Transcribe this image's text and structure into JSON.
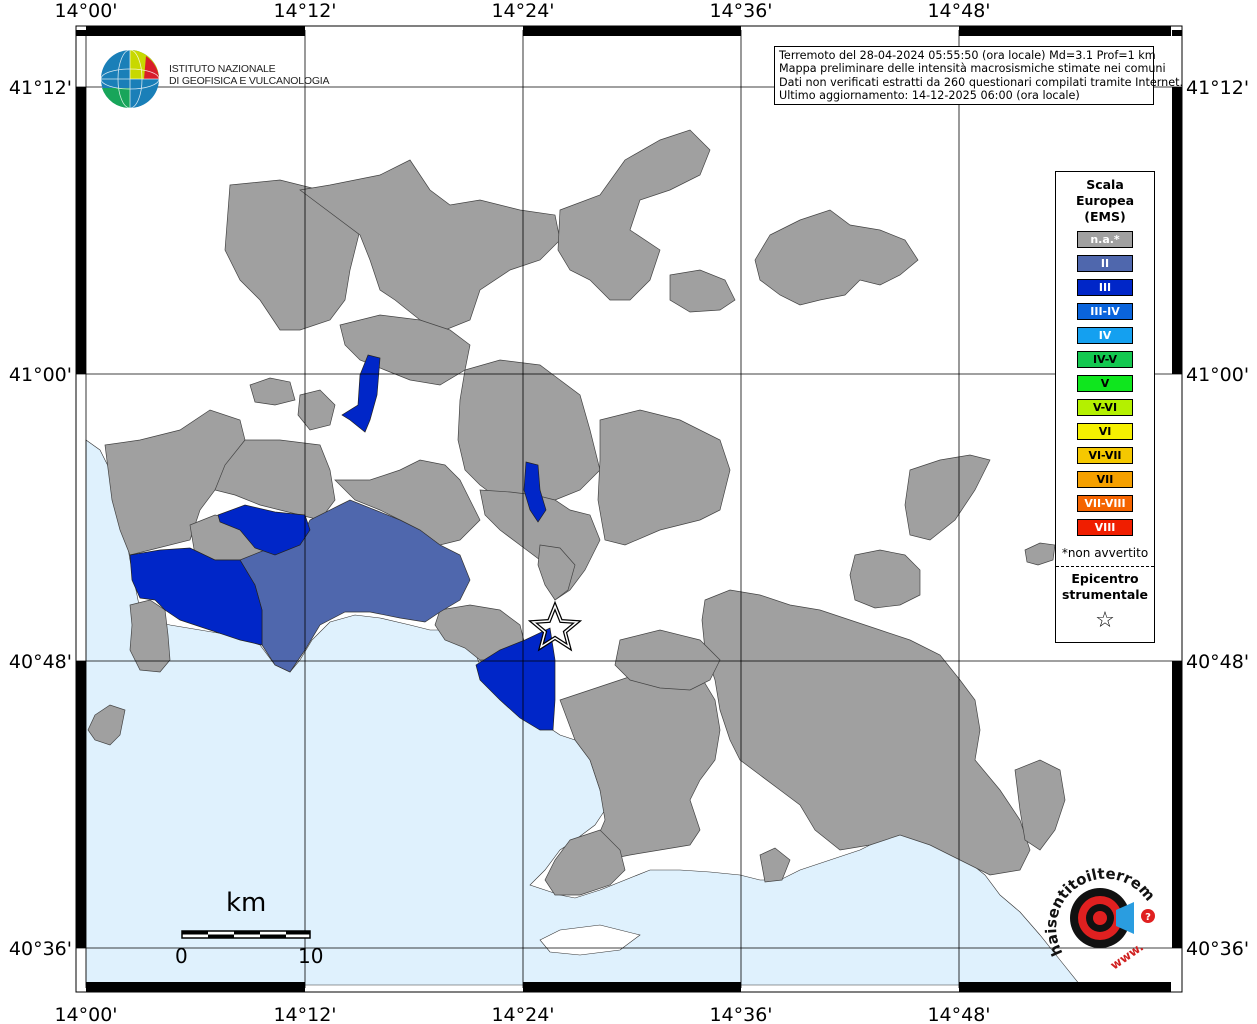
{
  "axes": {
    "top_lon_labels": [
      "14°00'",
      "14°12'",
      "14°24'",
      "14°36'",
      "14°48'"
    ],
    "bottom_lon_labels": [
      "14°00'",
      "14°12'",
      "14°24'",
      "14°36'",
      "14°48'"
    ],
    "left_lat_labels": [
      "41°12'",
      "41°00'",
      "40°48'",
      "40°36'"
    ],
    "right_lat_labels": [
      "41°12'",
      "41°00'",
      "40°48'",
      "40°36'"
    ]
  },
  "logo": {
    "line1": "ISTITUTO NAZIONALE",
    "line2": "DI GEOFISICA E VULCANOLOGIA"
  },
  "info": {
    "line1": "Terremoto del 28-04-2024 05:55:50 (ora locale) Md=3.1 Prof=1 km",
    "line2": "Mappa preliminare delle intensità macrosismiche stimate nei comuni",
    "line3": "Dati non verificati estratti da 260 questionari compilati tramite Internet.",
    "line4": "Ultimo aggiornamento: 14-12-2025 06:00 (ora locale)"
  },
  "legend": {
    "title_line1": "Scala",
    "title_line2": "Europea",
    "title_line3": "(EMS)",
    "items": [
      {
        "label": "n.a.*",
        "color": "#a0a0a0"
      },
      {
        "label": "II",
        "color": "#4f67ad"
      },
      {
        "label": "III",
        "color": "#0026c8"
      },
      {
        "label": "III-IV",
        "color": "#0a64dc"
      },
      {
        "label": "IV",
        "color": "#14a0f0"
      },
      {
        "label": "IV-V",
        "color": "#14c850"
      },
      {
        "label": "V",
        "color": "#0fe61e"
      },
      {
        "label": "V-VI",
        "color": "#b4f000"
      },
      {
        "label": "VI",
        "color": "#f5f000"
      },
      {
        "label": "VI-VII",
        "color": "#f5c800"
      },
      {
        "label": "VII",
        "color": "#f5a000"
      },
      {
        "label": "VII-VIII",
        "color": "#f56400"
      },
      {
        "label": "VIII",
        "color": "#f01e00"
      }
    ],
    "note": "*non avvertito",
    "epicenter_line1": "Epicentro",
    "epicenter_line2": "strumentale",
    "epicenter_symbol": "☆"
  },
  "scalebar": {
    "unit": "km",
    "start": "0",
    "end": "10"
  },
  "badge": {
    "text": "haisentitoilterremoto.it",
    "www": "www."
  },
  "colors": {
    "sea": "#dff1fd",
    "na": "#a0a0a0",
    "II": "#4f67ad",
    "III": "#0026c8"
  }
}
